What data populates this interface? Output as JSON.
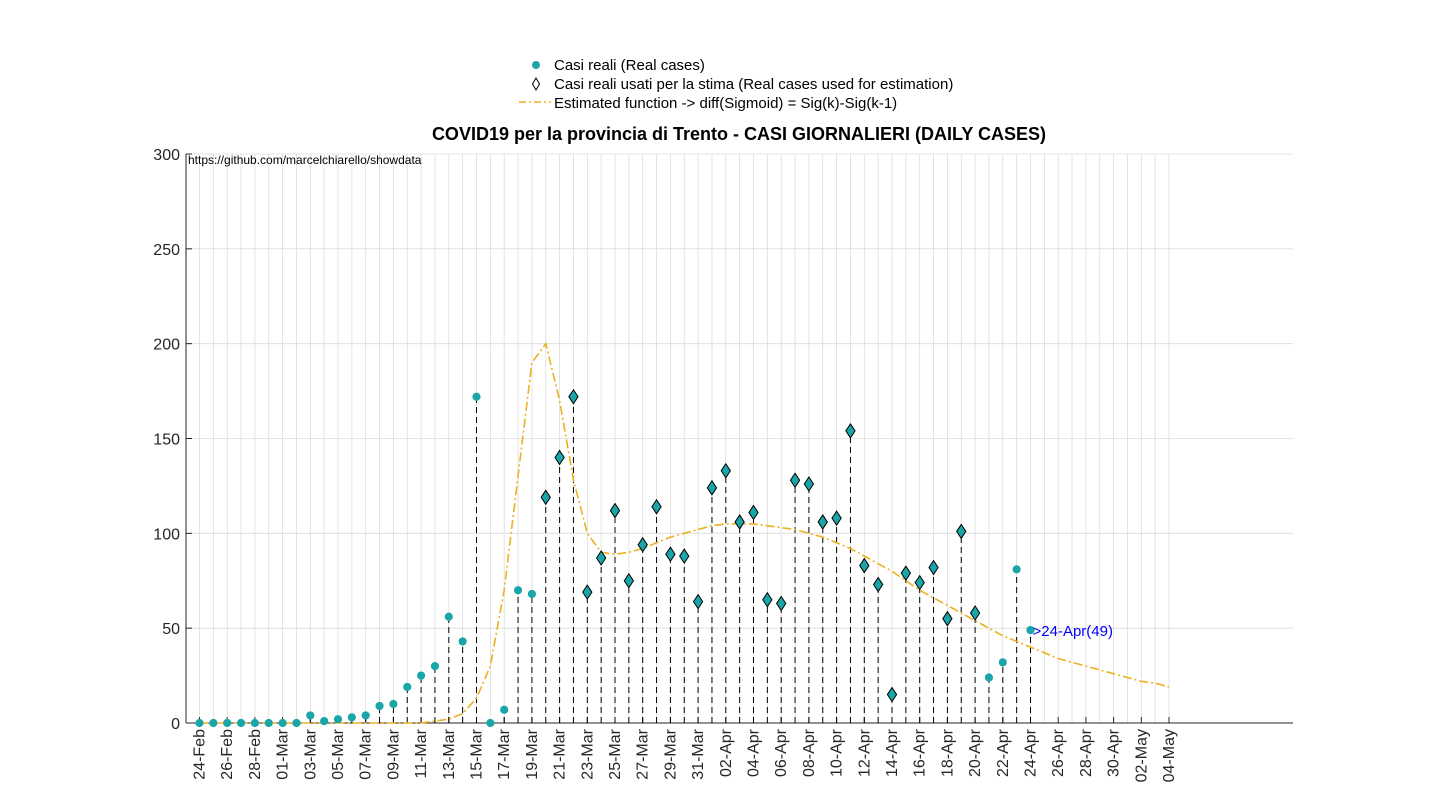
{
  "chart_data": {
    "type": "scatter",
    "title": "COVID19 per la provincia di Trento - CASI GIORNALIERI (DAILY CASES)",
    "source_note": "https://github.com/marcelchiarello/showdata",
    "xlabel": "",
    "ylabel": "",
    "ylim": [
      0,
      300
    ],
    "yticks": [
      0,
      50,
      100,
      150,
      200,
      250,
      300
    ],
    "grid": true,
    "legend_position": "top-center",
    "x_dates": [
      "24-Feb",
      "25-Feb",
      "26-Feb",
      "27-Feb",
      "28-Feb",
      "29-Feb",
      "01-Mar",
      "02-Mar",
      "03-Mar",
      "04-Mar",
      "05-Mar",
      "06-Mar",
      "07-Mar",
      "08-Mar",
      "09-Mar",
      "10-Mar",
      "11-Mar",
      "12-Mar",
      "13-Mar",
      "14-Mar",
      "15-Mar",
      "16-Mar",
      "17-Mar",
      "18-Mar",
      "19-Mar",
      "20-Mar",
      "21-Mar",
      "22-Mar",
      "23-Mar",
      "24-Mar",
      "25-Mar",
      "26-Mar",
      "27-Mar",
      "28-Mar",
      "29-Mar",
      "30-Mar",
      "31-Mar",
      "01-Apr",
      "02-Apr",
      "03-Apr",
      "04-Apr",
      "05-Apr",
      "06-Apr",
      "07-Apr",
      "08-Apr",
      "09-Apr",
      "10-Apr",
      "11-Apr",
      "12-Apr",
      "13-Apr",
      "14-Apr",
      "15-Apr",
      "16-Apr",
      "17-Apr",
      "18-Apr",
      "19-Apr",
      "20-Apr",
      "21-Apr",
      "22-Apr",
      "23-Apr",
      "24-Apr",
      "25-Apr",
      "26-Apr",
      "27-Apr",
      "28-Apr",
      "29-Apr",
      "30-Apr",
      "01-May",
      "02-May",
      "03-May",
      "04-May"
    ],
    "x_tick_labels": [
      "24-Feb",
      "26-Feb",
      "28-Feb",
      "01-Mar",
      "03-Mar",
      "05-Mar",
      "07-Mar",
      "09-Mar",
      "11-Mar",
      "13-Mar",
      "15-Mar",
      "17-Mar",
      "19-Mar",
      "21-Mar",
      "23-Mar",
      "25-Mar",
      "27-Mar",
      "29-Mar",
      "31-Mar",
      "02-Apr",
      "04-Apr",
      "06-Apr",
      "08-Apr",
      "10-Apr",
      "12-Apr",
      "14-Apr",
      "16-Apr",
      "18-Apr",
      "20-Apr",
      "22-Apr",
      "24-Apr",
      "26-Apr",
      "28-Apr",
      "30-Apr",
      "02-May",
      "04-May"
    ],
    "series": [
      {
        "name": "Casi reali (Real cases)",
        "marker": "circle",
        "color": "#1aa5a8",
        "values": [
          0,
          0,
          0,
          0,
          0,
          0,
          0,
          0,
          4,
          1,
          2,
          3,
          4,
          9,
          10,
          19,
          25,
          30,
          56,
          43,
          172,
          0,
          7,
          70,
          68,
          119,
          140,
          172,
          69,
          87,
          112,
          75,
          94,
          114,
          89,
          88,
          64,
          124,
          133,
          106,
          111,
          65,
          63,
          128,
          126,
          106,
          108,
          154,
          83,
          73,
          15,
          79,
          74,
          82,
          55,
          101,
          58,
          24,
          32,
          81,
          49
        ]
      },
      {
        "name": "Casi reali usati per la stima (Real cases used for estimation)",
        "marker": "diamond",
        "color": "#000000",
        "start_date": "20-Mar",
        "end_date": "20-Apr"
      },
      {
        "name": "Estimated function -> diff(Sigmoid) = Sig(k)-Sig(k-1)",
        "line_style": "dash-dot",
        "color": "#edb120",
        "values": [
          0,
          0,
          0,
          0,
          0,
          0,
          0,
          0,
          0,
          0,
          0,
          0,
          0,
          0,
          0,
          0,
          0,
          1,
          2,
          5,
          13,
          30,
          70,
          130,
          190,
          200,
          170,
          128,
          100,
          90,
          89,
          90,
          92,
          95,
          98,
          100,
          102,
          104,
          105,
          105,
          105,
          104,
          103,
          102,
          100,
          98,
          95,
          92,
          88,
          84,
          80,
          75,
          70,
          66,
          62,
          58,
          54,
          50,
          46,
          43,
          40,
          37,
          34,
          32,
          30,
          28,
          26,
          24,
          22,
          21,
          19
        ]
      }
    ],
    "annotation": {
      "text": ">24-Apr(49)",
      "date": "24-Apr",
      "value": 49,
      "color": "#0000ff"
    },
    "colors": {
      "axis": "#262626",
      "grid": "#dcdcdc",
      "stem": "#000000"
    }
  }
}
